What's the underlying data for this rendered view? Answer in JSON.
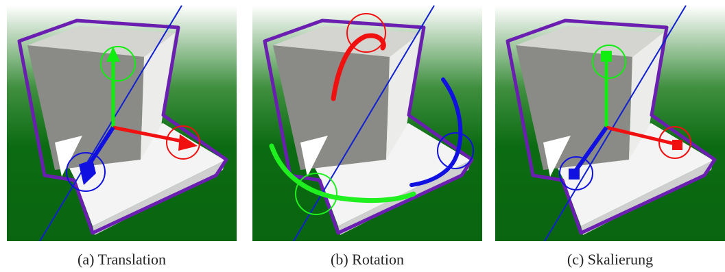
{
  "figures": [
    {
      "caption": "(a) Translation"
    },
    {
      "caption": "(b) Rotation"
    },
    {
      "caption": "(c) Skalierung"
    }
  ]
}
